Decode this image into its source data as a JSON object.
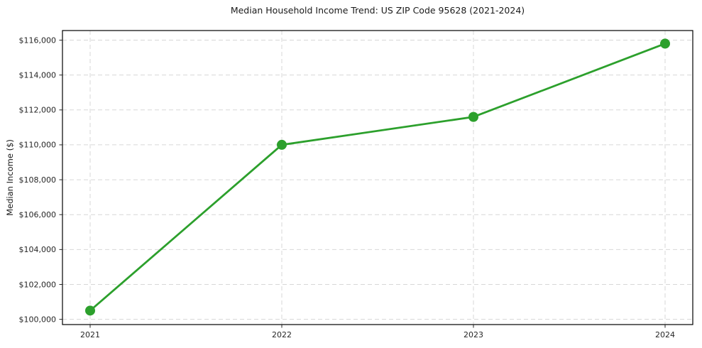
{
  "chart_data": {
    "type": "line",
    "title": "Median Household Income Trend: US ZIP Code 95628 (2021-2024)",
    "xlabel": "",
    "ylabel": "Median Income ($)",
    "categories": [
      "2021",
      "2022",
      "2023",
      "2024"
    ],
    "series": [
      {
        "color": "#2ca02c",
        "marker": "circle",
        "values": [
          100500,
          110000,
          111600,
          115800
        ]
      }
    ],
    "ytick_values": [
      100000,
      102000,
      104000,
      106000,
      108000,
      110000,
      112000,
      114000,
      116000
    ],
    "ytick_labels": [
      "$100,000",
      "$102,000",
      "$104,000",
      "$106,000",
      "$108,000",
      "$110,000",
      "$112,000",
      "$114,000",
      "$116,000"
    ],
    "ylim": [
      99700,
      116550
    ],
    "grid": true,
    "grid_style": "dashed",
    "grid_color": "#d7d7d7",
    "axis_color": "#000000",
    "tick_color": "#262626",
    "legend_position": "none"
  }
}
